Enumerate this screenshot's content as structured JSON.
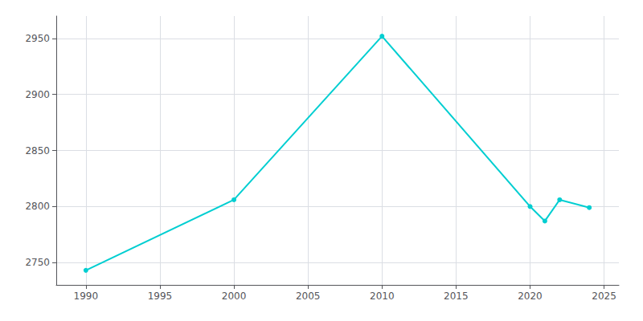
{
  "chart_data": {
    "type": "line",
    "x": [
      1990,
      2000,
      2010,
      2020,
      2021,
      2022,
      2024
    ],
    "values": [
      2743,
      2806,
      2952,
      2800,
      2787,
      2806,
      2799
    ],
    "color": "#00CED1",
    "marker": "circle",
    "xlim": [
      1988,
      2026
    ],
    "xticks": [
      1990,
      1995,
      2000,
      2005,
      2010,
      2015,
      2020,
      2025
    ],
    "ylim": [
      2730,
      2970
    ],
    "yticks": [
      2750,
      2800,
      2850,
      2900,
      2950
    ],
    "grid": true
  }
}
